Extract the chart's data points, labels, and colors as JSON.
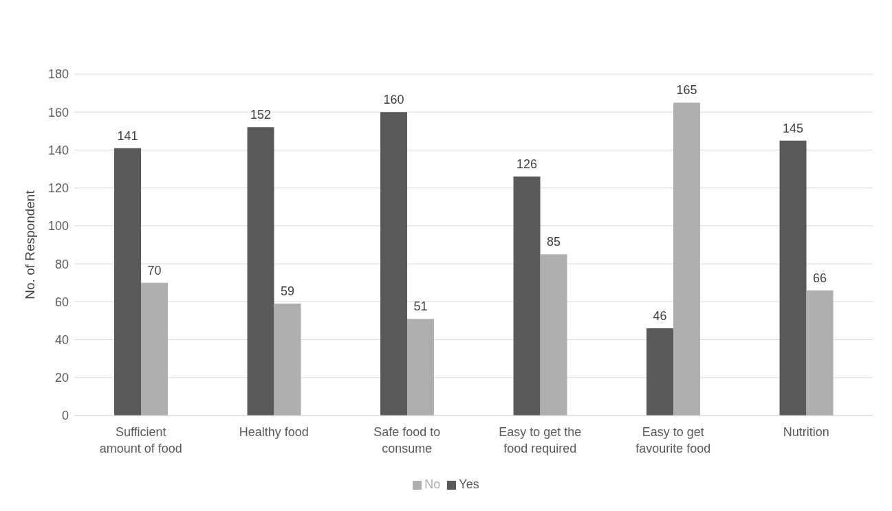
{
  "chart_data": {
    "type": "bar",
    "ylabel": "No. of Respondent",
    "categories": [
      "Sufficient amount of food",
      "Healthy food",
      "Safe food to consume",
      "Easy to get the food required",
      "Easy to get favourite food",
      "Nutrition"
    ],
    "series": [
      {
        "name": "Yes",
        "color": "#595959",
        "values": [
          141,
          152,
          160,
          126,
          46,
          145
        ]
      },
      {
        "name": "No",
        "color": "#afafaf",
        "values": [
          70,
          59,
          51,
          85,
          165,
          66
        ]
      }
    ],
    "ylim": [
      0,
      180
    ],
    "yticks": [
      0,
      20,
      40,
      60,
      80,
      100,
      120,
      140,
      160,
      180
    ],
    "grid": "y",
    "legend": "bottom",
    "data_labels": true
  }
}
